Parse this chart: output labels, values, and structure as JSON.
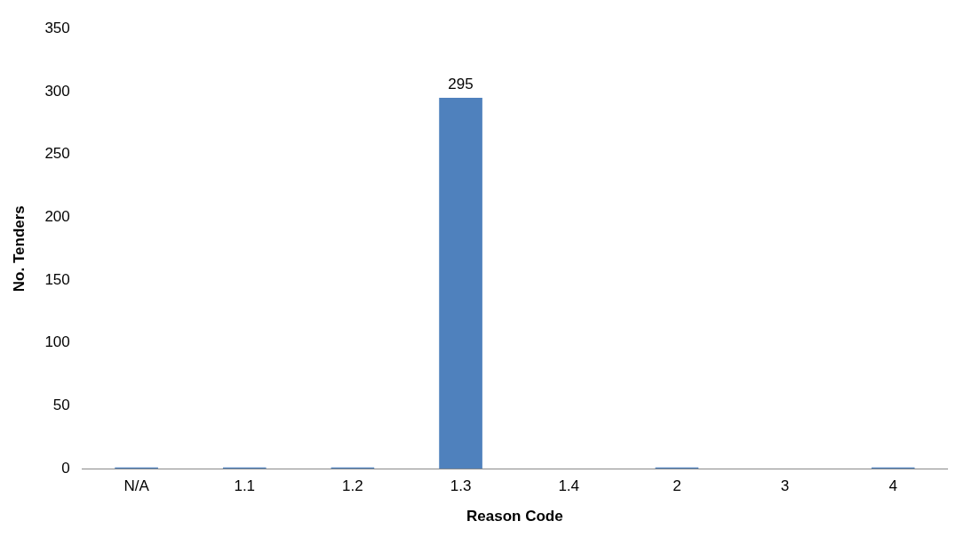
{
  "chart_data": {
    "type": "bar",
    "xlabel": "Reason Code",
    "ylabel": "No. Tenders",
    "categories": [
      "N/A",
      "1.1",
      "1.2",
      "1.3",
      "1.4",
      "2",
      "3",
      "4"
    ],
    "values": [
      1,
      1,
      1,
      295,
      0,
      1,
      0,
      1
    ],
    "value_labels": [
      null,
      null,
      null,
      "295",
      null,
      null,
      null,
      null
    ],
    "color": "#4f81bd",
    "ylim": [
      0,
      350
    ],
    "yticks": [
      0,
      50,
      100,
      150,
      200,
      250,
      300,
      350
    ],
    "grid": false,
    "legend": false
  }
}
